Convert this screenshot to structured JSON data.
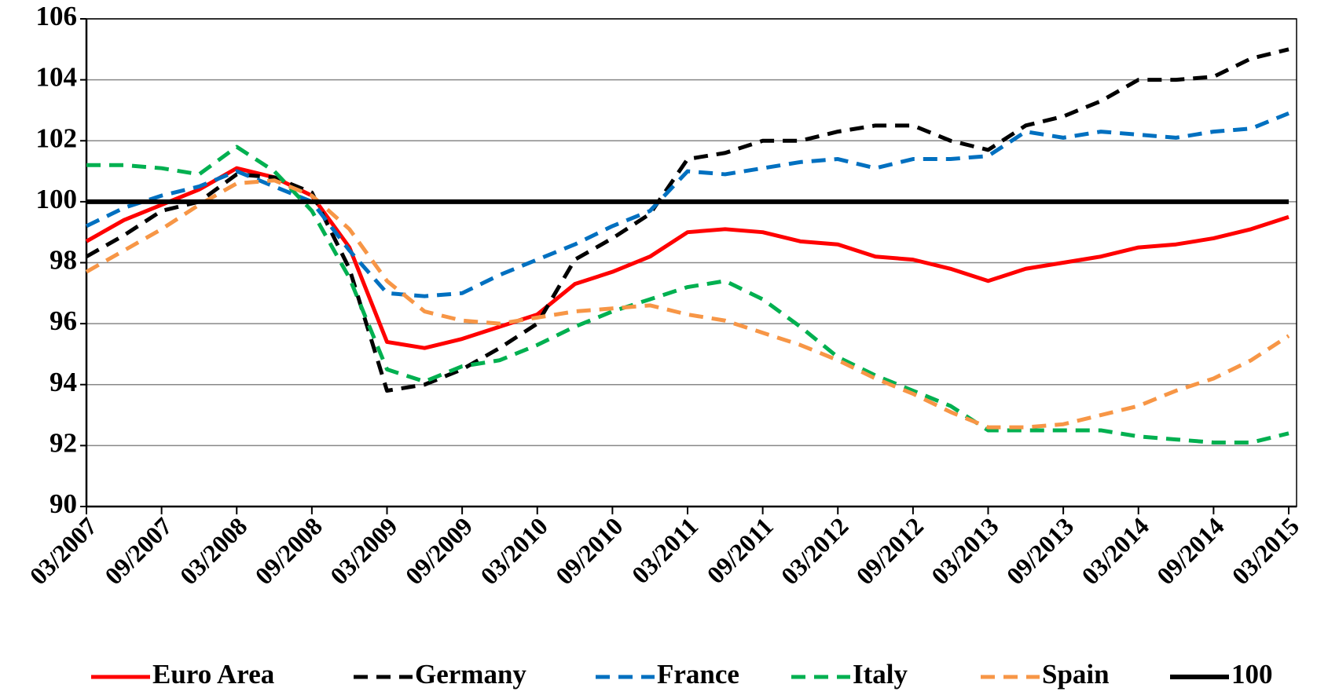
{
  "chart_data": {
    "type": "line",
    "categories": [
      "03/2007",
      null,
      "09/2007",
      null,
      "03/2008",
      null,
      "09/2008",
      null,
      "03/2009",
      null,
      "09/2009",
      null,
      "03/2010",
      null,
      "09/2010",
      null,
      "03/2011",
      null,
      "09/2011",
      null,
      "03/2012",
      null,
      "09/2012",
      null,
      "03/2013",
      null,
      "09/2013",
      null,
      "03/2014",
      null,
      "09/2014",
      null,
      "03/2015"
    ],
    "series": [
      {
        "name": "Euro Area",
        "color": "#ff0000",
        "style": "solid",
        "values": [
          98.7,
          99.4,
          99.9,
          100.4,
          101.1,
          100.8,
          100.2,
          98.5,
          95.4,
          95.2,
          95.5,
          95.9,
          96.3,
          97.3,
          97.7,
          98.2,
          99.0,
          99.1,
          99.0,
          98.7,
          98.6,
          98.2,
          98.1,
          97.8,
          97.4,
          97.8,
          98.0,
          98.2,
          98.5,
          98.6,
          98.8,
          99.1,
          99.5
        ]
      },
      {
        "name": "Germany",
        "color": "#000000",
        "style": "dashed",
        "values": [
          98.2,
          98.9,
          99.7,
          100.0,
          100.9,
          100.8,
          100.3,
          97.8,
          93.8,
          94.0,
          94.5,
          95.2,
          96.0,
          98.1,
          98.8,
          99.6,
          101.4,
          101.6,
          102.0,
          102.0,
          102.3,
          102.5,
          102.5,
          102.0,
          101.7,
          102.5,
          102.8,
          103.3,
          104.0,
          104.0,
          104.1,
          104.7,
          105.0
        ]
      },
      {
        "name": "France",
        "color": "#0070c0",
        "style": "dashed",
        "values": [
          99.2,
          99.8,
          100.2,
          100.5,
          101.0,
          100.5,
          100.0,
          98.4,
          97.0,
          96.9,
          97.0,
          97.6,
          98.1,
          98.6,
          99.2,
          99.7,
          101.0,
          100.9,
          101.1,
          101.3,
          101.4,
          101.1,
          101.4,
          101.4,
          101.5,
          102.3,
          102.1,
          102.3,
          102.2,
          102.1,
          102.3,
          102.4,
          102.9
        ]
      },
      {
        "name": "Italy",
        "color": "#00b050",
        "style": "dashed",
        "values": [
          101.2,
          101.2,
          101.1,
          100.9,
          101.8,
          101.0,
          99.7,
          97.5,
          94.5,
          94.1,
          94.6,
          94.8,
          95.3,
          95.9,
          96.4,
          96.8,
          97.2,
          97.4,
          96.8,
          95.9,
          94.9,
          94.3,
          93.8,
          93.3,
          92.5,
          92.5,
          92.5,
          92.5,
          92.3,
          92.2,
          92.1,
          92.1,
          92.4
        ]
      },
      {
        "name": "Spain",
        "color": "#f79646",
        "style": "dashed",
        "values": [
          97.7,
          98.4,
          99.1,
          99.9,
          100.6,
          100.7,
          100.2,
          99.1,
          97.4,
          96.4,
          96.1,
          96.0,
          96.2,
          96.4,
          96.5,
          96.6,
          96.3,
          96.1,
          95.7,
          95.3,
          94.8,
          94.2,
          93.7,
          93.1,
          92.6,
          92.6,
          92.7,
          93.0,
          93.3,
          93.8,
          94.2,
          94.8,
          95.6
        ]
      },
      {
        "name": "100",
        "color": "#000000",
        "style": "solid",
        "values": [
          100,
          100,
          100,
          100,
          100,
          100,
          100,
          100,
          100,
          100,
          100,
          100,
          100,
          100,
          100,
          100,
          100,
          100,
          100,
          100,
          100,
          100,
          100,
          100,
          100,
          100,
          100,
          100,
          100,
          100,
          100,
          100,
          100
        ]
      }
    ],
    "ylim": [
      90,
      106
    ],
    "yticks": [
      90,
      92,
      94,
      96,
      98,
      100,
      102,
      104,
      106
    ],
    "grid": true,
    "legend": "bottom"
  }
}
